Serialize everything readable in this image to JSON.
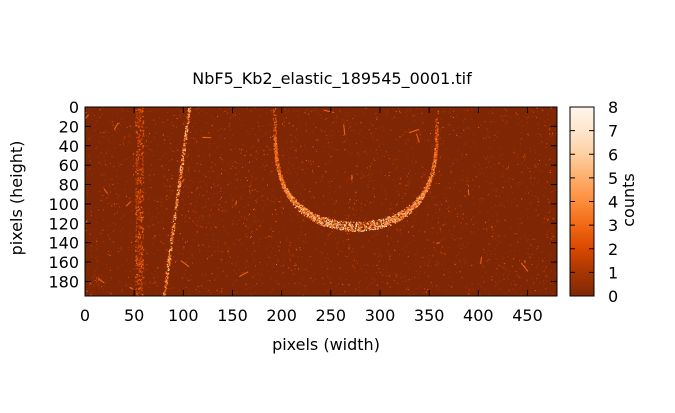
{
  "chart_data": {
    "type": "heatmap",
    "title": "NbF5_Kb2_elastic_189545_0001.tif",
    "xlabel": "pixels (width)",
    "ylabel": "pixels (height)",
    "colorbar_label": "counts",
    "xlim": [
      0,
      480
    ],
    "ylim": [
      0,
      195
    ],
    "y_inverted": true,
    "x_ticks": [
      0,
      50,
      100,
      150,
      200,
      250,
      300,
      350,
      400,
      450
    ],
    "x_tick_labels": [
      "0",
      "50",
      "100",
      "150",
      "200",
      "250",
      "300",
      "350",
      "400",
      "450"
    ],
    "y_ticks": [
      0,
      20,
      40,
      60,
      80,
      100,
      120,
      140,
      160,
      180
    ],
    "y_tick_labels": [
      "0",
      "20",
      "40",
      "60",
      "80",
      "100",
      "120",
      "140",
      "160",
      "180"
    ],
    "colorbar_range": [
      0,
      8
    ],
    "colorbar_ticks": [
      0,
      1,
      2,
      3,
      4,
      5,
      6,
      7,
      8
    ],
    "colorbar_tick_labels": [
      "0",
      "1",
      "2",
      "3",
      "4",
      "5",
      "6",
      "7",
      "8"
    ],
    "colormap": [
      "#7f2704",
      "#a63603",
      "#d94801",
      "#f16913",
      "#fd8d3c",
      "#fdae6b",
      "#fdd0a2",
      "#fee6ce",
      "#fff5eb"
    ],
    "background_count": 0,
    "features": [
      {
        "kind": "streak",
        "description": "faint vertical line",
        "x_top": 55,
        "x_bottom": 55,
        "y_top": 0,
        "y_bottom": 195,
        "peak_count": 3
      },
      {
        "kind": "streak",
        "description": "tilted bright line",
        "x_top": 106,
        "x_bottom": 80,
        "y_top": 0,
        "y_bottom": 195,
        "peak_count": 6
      },
      {
        "kind": "arc",
        "description": "U-shaped diffraction arc",
        "x_left": 178,
        "x_right": 343,
        "x_center": 275,
        "y_top": 0,
        "y_bottom": 128,
        "peak_count": 7
      }
    ]
  }
}
